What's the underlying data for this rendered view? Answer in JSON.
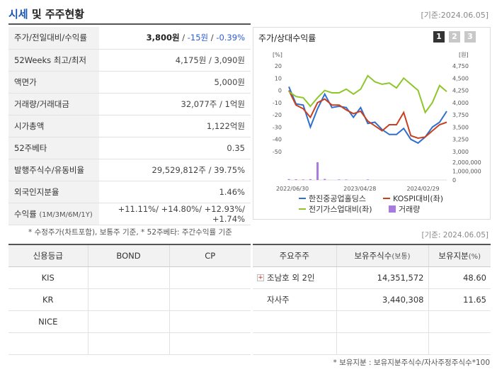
{
  "header": {
    "title_a": "시세",
    "title_b": " 및 주주현황",
    "date": "[기준:2024.06.05]"
  },
  "info_rows": {
    "r0": {
      "label": "주가/전일대비/수익률",
      "price": "3,800원",
      "sep1": " / ",
      "change": "-15원",
      "sep2": " / ",
      "rate": "-0.39%"
    },
    "r1": {
      "label": "52Weeks 최고/최저",
      "value": "4,175원 / 3,090원"
    },
    "r2": {
      "label": "액면가",
      "value": "5,000원"
    },
    "r3": {
      "label": "거래량/거래대금",
      "value": "32,077주 / 1억원"
    },
    "r4": {
      "label": "시가총액",
      "value": "1,122억원"
    },
    "r5": {
      "label": "52주베타",
      "value": "0.35"
    },
    "r6": {
      "label": "발행주식수/유동비율",
      "value": "29,529,812주 / 39.75%"
    },
    "r7": {
      "label": "외국인지분율",
      "value": "1.46%"
    },
    "r8": {
      "label": "수익률",
      "label_sub": "(1M/3M/6M/1Y)",
      "value": "+11.11%/ +14.80%/ +12.93%/ +1.74%"
    }
  },
  "note1": "* 수정주가(차트포함), 보통주 기준, * 52주베타: 주간수익률 기준",
  "chart_panel": {
    "title": "주가/상대수익률",
    "tabs": [
      "1",
      "2",
      "3"
    ]
  },
  "chart_data": {
    "type": "line",
    "left_unit": "[%]",
    "right_unit": "[원]",
    "left_ticks": [
      "20",
      "10",
      "0",
      "-10",
      "-20",
      "-30",
      "-40",
      "-50"
    ],
    "right_ticks": [
      "4,750",
      "4,500",
      "4,250",
      "4,000",
      "3,750",
      "3,500",
      "3,250",
      "3,000"
    ],
    "vol_ticks": [
      "2,000,000",
      "1,000,000",
      "0"
    ],
    "x_labels": [
      "2022/06/30",
      "2023/04/28",
      "2024/02/29"
    ],
    "left_ylim": [
      -50,
      20
    ],
    "volume_ylim": [
      0,
      2000000
    ],
    "series": [
      {
        "name": "한진중공업홀딩스",
        "color": "#2e6fd0",
        "values": [
          3,
          -11,
          -12,
          -30,
          -15,
          -3,
          -14,
          -13,
          -14,
          -22,
          -14,
          -27,
          -26,
          -32,
          -36,
          -36,
          -31,
          -40,
          -43,
          -38,
          -30,
          -26,
          -17
        ]
      },
      {
        "name": "KOSPI대비(좌)",
        "color": "#c8401e",
        "values": [
          0,
          -12,
          -15,
          -22,
          -10,
          -7,
          -12,
          -12,
          -16,
          -19,
          -17,
          -25,
          -29,
          -33,
          -28,
          -28,
          -18,
          -37,
          -39,
          -38,
          -33,
          -28,
          -26
        ]
      },
      {
        "name": "전기가스업대비(좌)",
        "color": "#8ec62a",
        "values": [
          -1,
          -5,
          -6,
          -13,
          -6,
          0,
          -2,
          -2,
          1,
          -3,
          1,
          12,
          7,
          5,
          6,
          2,
          10,
          5,
          0,
          -18,
          -10,
          4,
          -1
        ]
      }
    ],
    "volume": {
      "name": "거래량",
      "color": "#a77ae0",
      "values": [
        100000,
        80000,
        60000,
        90000,
        2000000,
        120000,
        0,
        60000,
        50000,
        0,
        0,
        60000,
        0,
        0,
        0,
        0,
        0,
        0,
        0,
        0,
        0,
        0,
        0
      ]
    },
    "legend": [
      "한진중공업홀딩스",
      "KOSPI대비(좌)",
      "전기가스업대비(좌)",
      "거래량"
    ]
  },
  "date2": "[기준: 2024.06.05]",
  "credit": {
    "headers": [
      "신용등급",
      "BOND",
      "CP"
    ],
    "rows": [
      [
        "KIS",
        "",
        ""
      ],
      [
        "KR",
        "",
        ""
      ],
      [
        "NICE",
        "",
        ""
      ],
      [
        "",
        "",
        ""
      ]
    ]
  },
  "holders": {
    "headers": [
      "주요주주",
      "보유주식수",
      "(보통)",
      "보유지분",
      "(%)"
    ],
    "rows": [
      {
        "name": "조남호 외 2인",
        "shares": "14,351,572",
        "pct": "48.60"
      },
      {
        "name": "자사주",
        "shares": "3,440,308",
        "pct": "11.65"
      }
    ]
  },
  "note2": "* 보유지분 : 보유지분주식수/자사주정주식수*100"
}
